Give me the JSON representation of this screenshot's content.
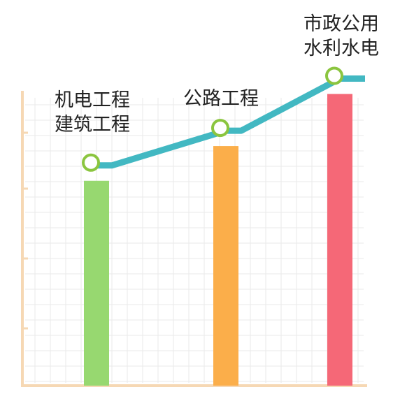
{
  "chart_data": {
    "type": "bar",
    "title": "",
    "xlabel": "",
    "ylabel": "",
    "ylim": [
      0,
      100
    ],
    "grid": true,
    "categories": [
      {
        "lines": [
          "机电工程",
          "建筑工程"
        ]
      },
      {
        "lines": [
          "公路工程"
        ]
      },
      {
        "lines": [
          "市政公用",
          "水利水电"
        ]
      }
    ],
    "values": [
      59,
      69,
      84
    ],
    "trend_line": true,
    "colors": {
      "bars": [
        "#97d870",
        "#fbae4a",
        "#f56877"
      ],
      "trend_line": "#42b8c2",
      "markers": "#8bc53f",
      "axis": "#f6d8b4",
      "grid": "#eaeaea"
    }
  }
}
